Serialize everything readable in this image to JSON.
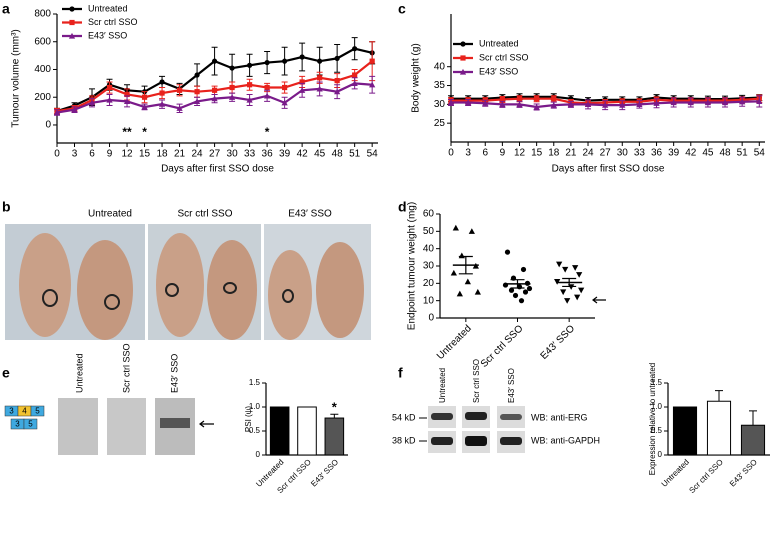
{
  "chart_data": [
    {
      "type": "line",
      "panel_label": "a",
      "ylabel": "Tumour volume (mm³)",
      "xlabel": "Days after first SSO dose",
      "x": [
        0,
        3,
        6,
        9,
        12,
        15,
        18,
        21,
        24,
        27,
        30,
        33,
        36,
        39,
        42,
        45,
        48,
        51,
        54
      ],
      "xlim": [
        0,
        55
      ],
      "xticks": [
        0,
        3,
        6,
        9,
        12,
        15,
        18,
        21,
        24,
        27,
        30,
        33,
        36,
        39,
        42,
        45,
        48,
        51,
        54
      ],
      "ylim": [
        -130,
        800
      ],
      "yticks": [
        0,
        200,
        400,
        600,
        800
      ],
      "legend": "upper left",
      "series": [
        {
          "name": "Untreated",
          "color": "#000000",
          "marker": "circle",
          "values": [
            100,
            140,
            200,
            290,
            250,
            240,
            310,
            260,
            360,
            460,
            410,
            430,
            450,
            460,
            490,
            460,
            480,
            550,
            520
          ],
          "errors": [
            20,
            20,
            60,
            40,
            40,
            40,
            40,
            40,
            80,
            100,
            100,
            80,
            80,
            100,
            100,
            100,
            100,
            80,
            80
          ]
        },
        {
          "name": "Scr ctrl SSO",
          "color": "#e8221c",
          "marker": "square",
          "values": [
            100,
            120,
            180,
            270,
            220,
            200,
            230,
            250,
            240,
            250,
            270,
            290,
            270,
            270,
            310,
            340,
            320,
            360,
            460
          ],
          "errors": [
            20,
            20,
            30,
            40,
            40,
            40,
            40,
            40,
            40,
            30,
            40,
            40,
            30,
            40,
            40,
            40,
            50,
            40,
            140
          ]
        },
        {
          "name": "E43′ SSO",
          "color": "#7a1b8a",
          "marker": "triangle",
          "values": [
            90,
            110,
            160,
            180,
            170,
            130,
            150,
            120,
            170,
            190,
            200,
            180,
            210,
            160,
            250,
            260,
            240,
            300,
            290
          ],
          "errors": [
            20,
            20,
            30,
            40,
            40,
            20,
            30,
            30,
            30,
            30,
            30,
            40,
            40,
            40,
            50,
            50,
            50,
            40,
            60
          ]
        }
      ],
      "annotations": [
        {
          "text": "**",
          "x": 12
        },
        {
          "text": "*",
          "x": 15
        },
        {
          "text": "*",
          "x": 36
        }
      ]
    },
    {
      "type": "line",
      "panel_label": "c",
      "ylabel": "Body weight (g)",
      "xlabel": "Days after first SSO dose",
      "x": [
        0,
        3,
        6,
        9,
        12,
        15,
        18,
        21,
        24,
        27,
        30,
        33,
        36,
        39,
        42,
        45,
        48,
        51,
        54
      ],
      "xlim": [
        0,
        55
      ],
      "xticks": [
        0,
        3,
        6,
        9,
        12,
        15,
        18,
        21,
        24,
        27,
        30,
        33,
        36,
        39,
        42,
        45,
        48,
        51,
        54
      ],
      "ylim": [
        20,
        54
      ],
      "yticks": [
        25,
        30,
        35,
        40
      ],
      "legend": "upper left",
      "series": [
        {
          "name": "Untreated",
          "color": "#000000",
          "marker": "circle",
          "values": [
            31.5,
            31.5,
            31.5,
            31.8,
            32,
            32,
            32,
            31.5,
            31,
            31.2,
            31.2,
            31.2,
            31.8,
            31.5,
            31.5,
            31.4,
            31.4,
            31.6,
            31.8
          ],
          "errors": [
            0.8,
            0.8,
            0.8,
            0.8,
            0.8,
            0.8,
            0.8,
            0.8,
            0.8,
            0.8,
            0.8,
            0.8,
            0.8,
            0.8,
            0.8,
            0.8,
            0.8,
            0.8,
            0.8
          ]
        },
        {
          "name": "Scr ctrl SSO",
          "color": "#e8221c",
          "marker": "square",
          "values": [
            31,
            31,
            31,
            31.3,
            31.5,
            31.5,
            31.5,
            30.5,
            30.3,
            30.5,
            30.7,
            30.7,
            31.2,
            31,
            31,
            31,
            31,
            31.2,
            31.5
          ],
          "errors": [
            0.8,
            0.8,
            0.8,
            0.8,
            0.8,
            0.8,
            0.8,
            0.8,
            0.8,
            0.8,
            0.8,
            0.8,
            0.8,
            0.8,
            0.8,
            0.8,
            0.8,
            0.8,
            1
          ]
        },
        {
          "name": "E43′ SSO",
          "color": "#7a1b8a",
          "marker": "triangle",
          "values": [
            30.5,
            30.5,
            30.3,
            30,
            30,
            29.3,
            29.8,
            30,
            30,
            29.8,
            29.8,
            30,
            30.3,
            30.5,
            30.5,
            30.5,
            30.5,
            30.7,
            30.8
          ],
          "errors": [
            0.8,
            0.8,
            0.8,
            0.8,
            0.8,
            0.8,
            0.8,
            0.8,
            1.2,
            1.2,
            1.2,
            1,
            1.2,
            1.2,
            1.2,
            1.2,
            1.2,
            1.2,
            1.5
          ]
        }
      ]
    },
    {
      "type": "dot",
      "panel_label": "d",
      "ylabel": "Endpoint tumour weight (mg)",
      "categories": [
        "Untreated",
        "Scr ctrl SSO",
        "E43′ SSO"
      ],
      "ylim": [
        0,
        60
      ],
      "yticks": [
        0,
        10,
        20,
        30,
        40,
        50,
        60
      ],
      "groups": [
        {
          "marker": "triangle",
          "values": [
            52,
            50,
            36,
            30,
            26,
            21,
            15,
            14
          ],
          "mean": 30.5,
          "sem": 5
        },
        {
          "marker": "circle",
          "values": [
            38,
            28,
            23,
            20,
            19,
            18,
            17,
            16,
            15,
            13,
            10
          ],
          "mean": 19.7,
          "sem": 2.4
        },
        {
          "marker": "triangle-down",
          "values": [
            31,
            29,
            28,
            25,
            21,
            18,
            16,
            15,
            12,
            10
          ],
          "mean": 20.5,
          "sem": 2.3
        }
      ]
    },
    {
      "type": "bar",
      "panel_label": "e",
      "ylabel": "PSI (ψ)",
      "categories": [
        "Untreated",
        "Scr ctrl SSO",
        "E43′ SSO"
      ],
      "values": [
        1,
        1,
        0.77
      ],
      "errors": [
        null,
        null,
        0.08
      ],
      "colors": [
        "#000000",
        "#ffffff",
        "#555555"
      ],
      "ylim": [
        0,
        1.5
      ],
      "yticks": [
        0,
        0.5,
        {
          "value": 1,
          "label": "1.0"
        },
        1.5
      ],
      "annotations": [
        {
          "text": "*",
          "index": 2
        }
      ]
    },
    {
      "type": "bar",
      "panel_label": "f",
      "ylabel": "Expression relative to untreated",
      "categories": [
        "Untreated",
        "Scr ctrl SSO",
        "E43′ SSO"
      ],
      "values": [
        1,
        1.12,
        0.62
      ],
      "errors": [
        null,
        0.22,
        0.3
      ],
      "colors": [
        "#000000",
        "#ffffff",
        "#555555"
      ],
      "ylim": [
        0,
        1.5
      ],
      "yticks": [
        0,
        0.5,
        {
          "value": 1,
          "label": "1.0"
        },
        1.5
      ]
    }
  ],
  "panel_b": {
    "panel_label": "b",
    "labels": [
      "Untreated",
      "Scr ctrl SSO",
      "E43′ SSO"
    ]
  },
  "gel_e": {
    "lanes": [
      "Untreated",
      "Scr ctrl SSO",
      "E43′ SSO"
    ],
    "exons_top": [
      "3",
      "4",
      "5"
    ],
    "exons_bottom": [
      "3",
      "5"
    ]
  },
  "blot_f": {
    "lanes": [
      "Untreated",
      "Scr ctrl SSO",
      "E43′ SSO"
    ],
    "markers": [
      "54 kD",
      "38 kD"
    ],
    "antibodies": [
      "WB: anti-ERG",
      "WB: anti-GAPDH"
    ]
  }
}
